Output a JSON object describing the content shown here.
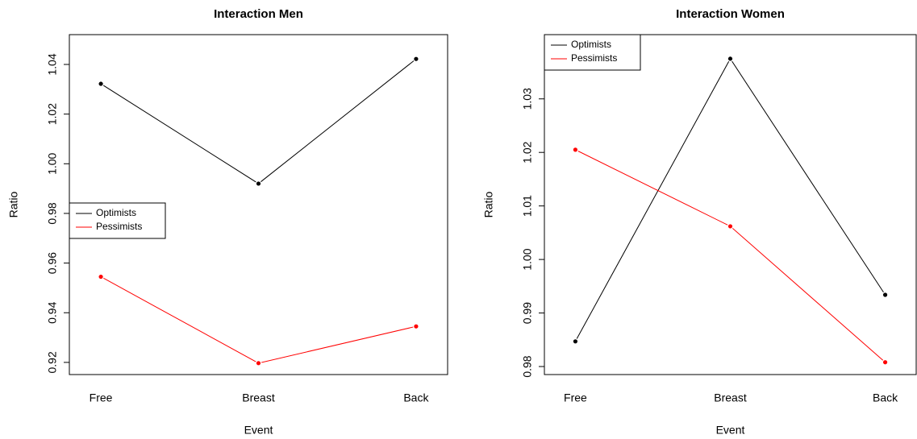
{
  "chart_data": [
    {
      "type": "line",
      "title": "Interaction Men",
      "x_label": "Event",
      "y_label": "Ratio",
      "categories": [
        "Free",
        "Breast",
        "Back"
      ],
      "series": [
        {
          "name": "Optimists",
          "color": "#000000",
          "values": [
            1.0322,
            0.992,
            1.0422
          ]
        },
        {
          "name": "Pessimists",
          "color": "#ff0000",
          "values": [
            0.9545,
            0.9197,
            0.9345
          ]
        }
      ],
      "ylim": [
        0.9151,
        1.052
      ],
      "yticks": [
        {
          "value": 0.92,
          "label": "0.92"
        },
        {
          "value": 0.94,
          "label": "0.94"
        },
        {
          "value": 0.96,
          "label": "0.96"
        },
        {
          "value": 0.98,
          "label": "0.98"
        },
        {
          "value": 1.0,
          "label": "1.00"
        },
        {
          "value": 1.02,
          "label": "1.02"
        },
        {
          "value": 1.04,
          "label": "1.04"
        }
      ],
      "legend": "left"
    },
    {
      "type": "line",
      "title": "Interaction Women",
      "x_label": "Event",
      "y_label": "Ratio",
      "categories": [
        "Free",
        "Breast",
        "Back"
      ],
      "series": [
        {
          "name": "Optimists",
          "color": "#000000",
          "values": [
            0.9847,
            1.0375,
            0.9934
          ]
        },
        {
          "name": "Pessimists",
          "color": "#ff0000",
          "values": [
            1.0205,
            1.0062,
            0.9808
          ]
        }
      ],
      "ylim": [
        0.9785,
        1.042
      ],
      "yticks": [
        {
          "value": 0.98,
          "label": "0.98"
        },
        {
          "value": 0.99,
          "label": "0.99"
        },
        {
          "value": 1.0,
          "label": "1.00"
        },
        1.01,
        1.02,
        1.03
      ],
      "legend": "topleft"
    }
  ]
}
